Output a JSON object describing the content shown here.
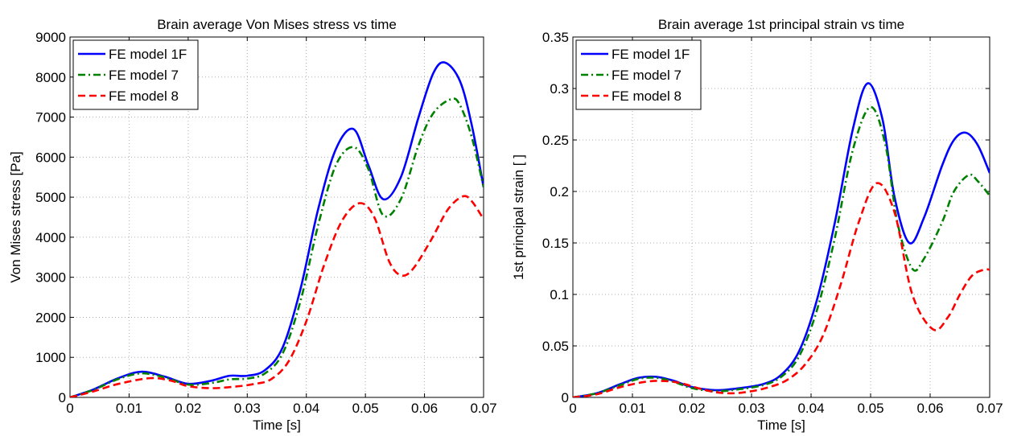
{
  "chart_data": [
    {
      "type": "line",
      "title": "Brain average Von Mises stress vs time",
      "xlabel": "Time [s]",
      "ylabel": "Von Mises stress [Pa]",
      "xlim": [
        0,
        0.07
      ],
      "ylim": [
        0,
        9000
      ],
      "xticks": [
        0,
        0.01,
        0.02,
        0.03,
        0.04,
        0.05,
        0.06,
        0.07
      ],
      "xtick_labels": [
        "0",
        "0.01",
        "0.02",
        "0.03",
        "0.04",
        "0.05",
        "0.06",
        "0.07"
      ],
      "yticks": [
        0,
        1000,
        2000,
        3000,
        4000,
        5000,
        6000,
        7000,
        8000,
        9000
      ],
      "ytick_labels": [
        "0",
        "1000",
        "2000",
        "3000",
        "4000",
        "5000",
        "6000",
        "7000",
        "8000",
        "9000"
      ],
      "grid": true,
      "legend_position": "top-left",
      "series": [
        {
          "name": "FE model 1F",
          "color": "#0000ff",
          "style": "solid",
          "x": [
            0,
            0.004,
            0.008,
            0.012,
            0.016,
            0.02,
            0.024,
            0.027,
            0.03,
            0.033,
            0.036,
            0.039,
            0.042,
            0.045,
            0.048,
            0.0505,
            0.053,
            0.056,
            0.059,
            0.0615,
            0.0635,
            0.066,
            0.068,
            0.07
          ],
          "y": [
            0,
            200,
            470,
            640,
            520,
            340,
            420,
            540,
            540,
            680,
            1250,
            2700,
            4700,
            6200,
            6700,
            5800,
            4950,
            5500,
            7000,
            8100,
            8360,
            7900,
            6800,
            5250
          ]
        },
        {
          "name": "FE model 7",
          "color": "#008000",
          "style": "dashdot",
          "x": [
            0,
            0.004,
            0.008,
            0.012,
            0.016,
            0.02,
            0.024,
            0.027,
            0.03,
            0.033,
            0.036,
            0.039,
            0.042,
            0.045,
            0.048,
            0.0505,
            0.053,
            0.056,
            0.059,
            0.0615,
            0.0645,
            0.066,
            0.068,
            0.07
          ],
          "y": [
            0,
            190,
            450,
            600,
            500,
            320,
            360,
            450,
            470,
            600,
            1100,
            2400,
            4300,
            5800,
            6250,
            5700,
            4550,
            4950,
            6300,
            7100,
            7450,
            7300,
            6500,
            5250
          ]
        },
        {
          "name": "FE model 8",
          "color": "#ff0000",
          "style": "dashed",
          "x": [
            0,
            0.004,
            0.008,
            0.0135,
            0.017,
            0.02,
            0.024,
            0.028,
            0.031,
            0.034,
            0.037,
            0.04,
            0.043,
            0.046,
            0.049,
            0.0515,
            0.054,
            0.056,
            0.058,
            0.061,
            0.064,
            0.0665,
            0.068,
            0.07
          ],
          "y": [
            0,
            150,
            330,
            480,
            420,
            280,
            230,
            270,
            330,
            450,
            900,
            1900,
            3300,
            4400,
            4850,
            4500,
            3400,
            3050,
            3200,
            3900,
            4700,
            5020,
            4900,
            4450
          ]
        }
      ]
    },
    {
      "type": "line",
      "title": "Brain average 1st principal strain vs time",
      "xlabel": "Time [s]",
      "ylabel": "1st principal strain [ ]",
      "xlim": [
        0,
        0.07
      ],
      "ylim": [
        0,
        0.35
      ],
      "xticks": [
        0,
        0.01,
        0.02,
        0.03,
        0.04,
        0.05,
        0.06,
        0.07
      ],
      "xtick_labels": [
        "0",
        "0.01",
        "0.02",
        "0.03",
        "0.04",
        "0.05",
        "0.06",
        "0.07"
      ],
      "yticks": [
        0,
        0.05,
        0.1,
        0.15,
        0.2,
        0.25,
        0.3,
        0.35
      ],
      "ytick_labels": [
        "0",
        "0.05",
        "0.1",
        "0.15",
        "0.2",
        "0.25",
        "0.3",
        "0.35"
      ],
      "grid": true,
      "legend_position": "top-left",
      "series": [
        {
          "name": "FE model 1F",
          "color": "#0000ff",
          "style": "solid",
          "x": [
            0,
            0.004,
            0.008,
            0.011,
            0.014,
            0.017,
            0.02,
            0.024,
            0.028,
            0.032,
            0.035,
            0.038,
            0.041,
            0.044,
            0.047,
            0.0495,
            0.052,
            0.054,
            0.0565,
            0.059,
            0.062,
            0.064,
            0.066,
            0.068,
            0.07
          ],
          "y": [
            0,
            0.004,
            0.013,
            0.019,
            0.02,
            0.016,
            0.01,
            0.007,
            0.009,
            0.013,
            0.022,
            0.045,
            0.095,
            0.17,
            0.26,
            0.305,
            0.27,
            0.195,
            0.15,
            0.175,
            0.225,
            0.25,
            0.257,
            0.245,
            0.218
          ]
        },
        {
          "name": "FE model 7",
          "color": "#008000",
          "style": "dashdot",
          "x": [
            0,
            0.004,
            0.008,
            0.011,
            0.014,
            0.017,
            0.02,
            0.024,
            0.028,
            0.032,
            0.035,
            0.038,
            0.041,
            0.044,
            0.047,
            0.05,
            0.0525,
            0.0545,
            0.057,
            0.059,
            0.062,
            0.064,
            0.0665,
            0.068,
            0.07
          ],
          "y": [
            0,
            0.004,
            0.012,
            0.018,
            0.019,
            0.015,
            0.009,
            0.006,
            0.008,
            0.012,
            0.02,
            0.04,
            0.085,
            0.155,
            0.24,
            0.282,
            0.245,
            0.17,
            0.125,
            0.135,
            0.17,
            0.2,
            0.216,
            0.21,
            0.196
          ]
        },
        {
          "name": "FE model 8",
          "color": "#ff0000",
          "style": "dashed",
          "x": [
            0,
            0.004,
            0.008,
            0.012,
            0.015,
            0.018,
            0.021,
            0.024,
            0.027,
            0.03,
            0.033,
            0.036,
            0.039,
            0.042,
            0.045,
            0.048,
            0.051,
            0.054,
            0.057,
            0.0605,
            0.063,
            0.065,
            0.067,
            0.069,
            0.07
          ],
          "y": [
            0,
            0.003,
            0.01,
            0.015,
            0.016,
            0.014,
            0.009,
            0.005,
            0.004,
            0.006,
            0.01,
            0.017,
            0.032,
            0.06,
            0.11,
            0.17,
            0.208,
            0.18,
            0.1,
            0.066,
            0.078,
            0.1,
            0.118,
            0.124,
            0.124
          ]
        }
      ]
    }
  ]
}
